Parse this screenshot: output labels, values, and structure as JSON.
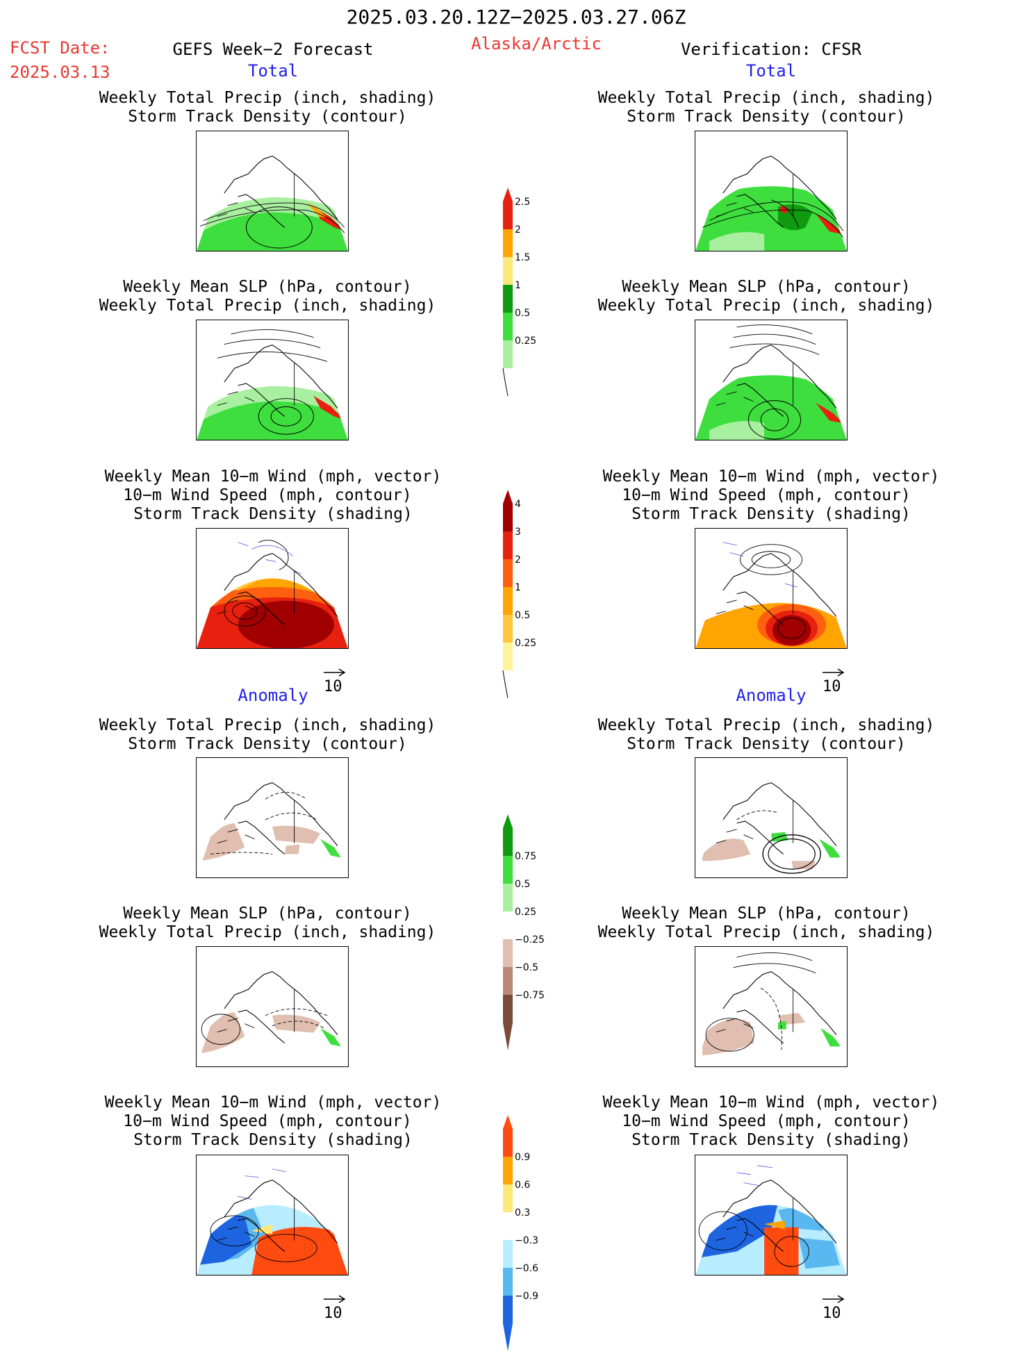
{
  "header": {
    "period": "2025.03.20.12Z−2025.03.27.06Z",
    "fcst_label": "FCST Date:",
    "fcst_date": "2025.03.13",
    "model": "GEFS Week−2 Forecast",
    "region": "Alaska/Arctic",
    "verification": "Verification: CFSR"
  },
  "sections": {
    "total": "Total",
    "anomaly": "Anomaly"
  },
  "titles": {
    "precip_storm": [
      "Weekly Total Precip (inch, shading)",
      "Storm Track Density (contour)"
    ],
    "slp_precip": [
      "Weekly Mean SLP (hPa, contour)",
      "Weekly Total Precip (inch, shading)"
    ],
    "wind_storm": [
      "Weekly Mean 10−m Wind (mph, vector)",
      "10−m Wind Speed (mph, contour)",
      "Storm Track Density (shading)"
    ]
  },
  "vector_ref": "10",
  "colorbars": {
    "precip_total": {
      "labels": [
        "2.5",
        "2",
        "1.5",
        "1",
        "0.5",
        "0.25"
      ],
      "colors": [
        "#e8200f",
        "#ffa400",
        "#ffe87a",
        "#0f9a0f",
        "#3ede3e",
        "#a8f0a0"
      ]
    },
    "storm_total": {
      "labels": [
        "4",
        "3",
        "2",
        "1",
        "0.5",
        "0.25"
      ],
      "colors": [
        "#a00000",
        "#e8200f",
        "#ff6010",
        "#ffa400",
        "#ffc63e",
        "#fff39a"
      ]
    },
    "precip_anom": {
      "labels": [
        "0.75",
        "0.5",
        "0.25",
        "−0.25",
        "−0.5",
        "−0.75"
      ],
      "colors": [
        "#0f9a0f",
        "#3ede3e",
        "#a8f0a0",
        "#ffffff",
        "#e0beb0",
        "#b88878",
        "#7a4a3a"
      ]
    },
    "storm_anom": {
      "labels": [
        "0.9",
        "0.6",
        "0.3",
        "−0.3",
        "−0.6",
        "−0.9"
      ],
      "colors": [
        "#ff4a10",
        "#ffa400",
        "#ffe87a",
        "#ffffff",
        "#b8ecff",
        "#5ab8f0",
        "#1e64e0"
      ]
    }
  }
}
